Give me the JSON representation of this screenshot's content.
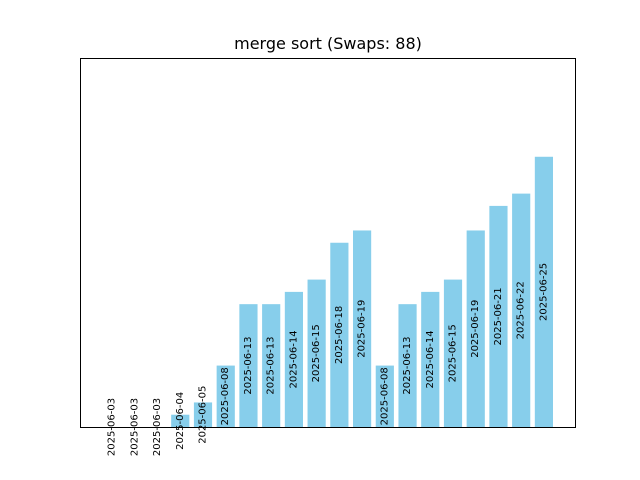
{
  "chart_data": {
    "type": "bar",
    "title": "merge sort (Swaps: 88)",
    "xlabel": "",
    "ylabel": "",
    "bar_color": "#87CEEB",
    "grid": false,
    "ylim": [
      0,
      30
    ],
    "categories": [
      "2025-06-03",
      "2025-06-03",
      "2025-06-03",
      "2025-06-04",
      "2025-06-05",
      "2025-06-08",
      "2025-06-13",
      "2025-06-13",
      "2025-06-14",
      "2025-06-15",
      "2025-06-18",
      "2025-06-19",
      "2025-06-08",
      "2025-06-13",
      "2025-06-14",
      "2025-06-15",
      "2025-06-19",
      "2025-06-21",
      "2025-06-22",
      "2025-06-25"
    ],
    "values": [
      0,
      0,
      0,
      1,
      2,
      5,
      10,
      10,
      11,
      12,
      15,
      16,
      5,
      10,
      11,
      12,
      16,
      18,
      19,
      22
    ]
  }
}
